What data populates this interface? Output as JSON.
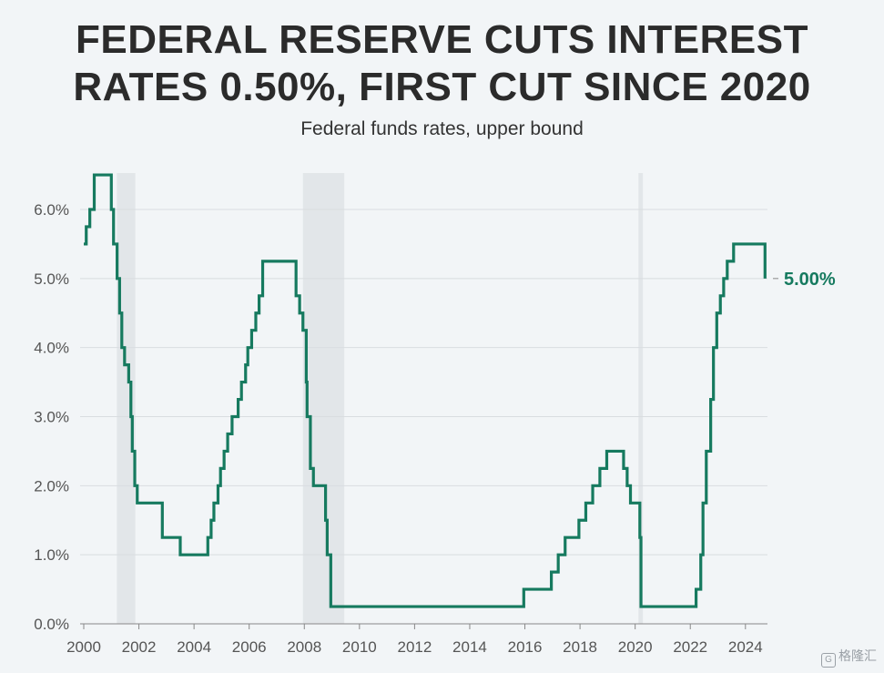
{
  "title_lines": [
    "FEDERAL RESERVE CUTS INTEREST",
    "RATES 0.50%, FIRST CUT SINCE 2020"
  ],
  "subtitle": "Federal funds rates, upper bound",
  "watermark": "格隆汇",
  "colors": {
    "line": "#167a5f",
    "shade": "#e2e6e9",
    "grid": "#d9dde0",
    "label": "#167a5f"
  },
  "chart_data": {
    "type": "line",
    "title": "FEDERAL RESERVE CUTS INTEREST RATES 0.50%, FIRST CUT SINCE 2020",
    "subtitle": "Federal funds rates, upper bound",
    "xlabel": "",
    "ylabel": "",
    "xlim": [
      2000,
      2024.7
    ],
    "ylim": [
      0,
      6.5
    ],
    "grid": true,
    "x_ticks": [
      2000,
      2002,
      2004,
      2006,
      2008,
      2010,
      2012,
      2014,
      2016,
      2018,
      2020,
      2022,
      2024
    ],
    "x_tick_labels": [
      "2000",
      "2002",
      "2004",
      "2006",
      "2008",
      "2010",
      "2012",
      "2014",
      "2016",
      "2018",
      "2020",
      "2022",
      "2024"
    ],
    "y_ticks": [
      0,
      1,
      2,
      3,
      4,
      5,
      6
    ],
    "y_tick_labels": [
      "0.0%",
      "1.0%",
      "2.0%",
      "3.0%",
      "4.0%",
      "5.0%",
      "6.0%"
    ],
    "recessions": [
      [
        2001.2,
        2001.87
      ],
      [
        2007.95,
        2009.45
      ],
      [
        2020.12,
        2020.28
      ]
    ],
    "end_label": "5.00%",
    "series": [
      {
        "step": true,
        "points": [
          [
            2000.0,
            5.5
          ],
          [
            2000.09,
            5.75
          ],
          [
            2000.22,
            6.0
          ],
          [
            2000.38,
            6.5
          ],
          [
            2001.0,
            6.0
          ],
          [
            2001.08,
            5.5
          ],
          [
            2001.21,
            5.0
          ],
          [
            2001.3,
            4.5
          ],
          [
            2001.38,
            4.0
          ],
          [
            2001.48,
            3.75
          ],
          [
            2001.63,
            3.5
          ],
          [
            2001.71,
            3.0
          ],
          [
            2001.76,
            2.5
          ],
          [
            2001.85,
            2.0
          ],
          [
            2001.94,
            1.75
          ],
          [
            2002.85,
            1.25
          ],
          [
            2003.5,
            1.0
          ],
          [
            2004.5,
            1.25
          ],
          [
            2004.62,
            1.5
          ],
          [
            2004.72,
            1.75
          ],
          [
            2004.87,
            2.0
          ],
          [
            2004.96,
            2.25
          ],
          [
            2005.09,
            2.5
          ],
          [
            2005.22,
            2.75
          ],
          [
            2005.38,
            3.0
          ],
          [
            2005.6,
            3.25
          ],
          [
            2005.72,
            3.5
          ],
          [
            2005.87,
            3.75
          ],
          [
            2005.95,
            4.0
          ],
          [
            2006.09,
            4.25
          ],
          [
            2006.24,
            4.5
          ],
          [
            2006.36,
            4.75
          ],
          [
            2006.49,
            5.0
          ],
          [
            2006.49,
            5.25
          ],
          [
            2007.7,
            4.75
          ],
          [
            2007.83,
            4.5
          ],
          [
            2007.95,
            4.25
          ],
          [
            2008.07,
            3.5
          ],
          [
            2008.1,
            3.0
          ],
          [
            2008.22,
            2.25
          ],
          [
            2008.33,
            2.0
          ],
          [
            2008.77,
            1.5
          ],
          [
            2008.83,
            1.0
          ],
          [
            2008.96,
            0.25
          ],
          [
            2015.96,
            0.5
          ],
          [
            2016.96,
            0.75
          ],
          [
            2017.21,
            1.0
          ],
          [
            2017.46,
            1.25
          ],
          [
            2017.96,
            1.5
          ],
          [
            2018.21,
            1.75
          ],
          [
            2018.46,
            2.0
          ],
          [
            2018.72,
            2.25
          ],
          [
            2018.97,
            2.5
          ],
          [
            2019.58,
            2.25
          ],
          [
            2019.71,
            2.0
          ],
          [
            2019.83,
            1.75
          ],
          [
            2020.17,
            1.25
          ],
          [
            2020.21,
            0.25
          ],
          [
            2022.21,
            0.5
          ],
          [
            2022.38,
            1.0
          ],
          [
            2022.46,
            1.75
          ],
          [
            2022.58,
            2.5
          ],
          [
            2022.74,
            3.25
          ],
          [
            2022.84,
            4.0
          ],
          [
            2022.96,
            4.5
          ],
          [
            2023.09,
            4.75
          ],
          [
            2023.21,
            5.0
          ],
          [
            2023.34,
            5.25
          ],
          [
            2023.57,
            5.5
          ],
          [
            2024.71,
            5.0
          ]
        ]
      }
    ]
  }
}
